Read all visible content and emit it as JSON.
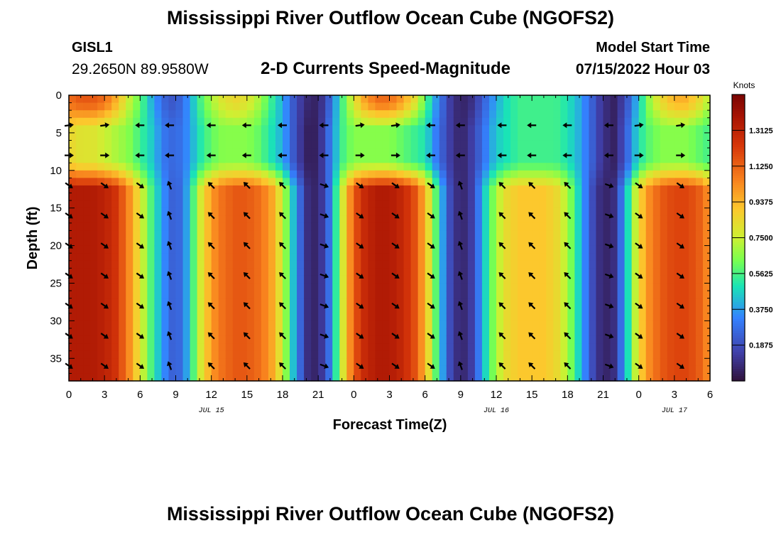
{
  "header": {
    "title": "Mississippi River Outflow Ocean Cube (NGOFS2)",
    "station_id": "GISL1",
    "station_coords": "29.2650N  89.9580W",
    "subtitle": "2-D Currents Speed-Magnitude",
    "model_start_label": "Model Start Time",
    "model_start_value": "07/15/2022 Hour 03"
  },
  "footer": {
    "title": "Mississippi River Outflow Ocean Cube (NGOFS2)"
  },
  "chart_data": {
    "type": "heatmap",
    "title": "2-D Currents Speed-Magnitude",
    "xlabel": "Forecast Time(Z)",
    "ylabel": "Depth (ft)",
    "xlim": [
      0,
      54
    ],
    "ylim": [
      38,
      0
    ],
    "x_ticks": [
      0,
      3,
      6,
      9,
      12,
      15,
      18,
      21,
      24,
      27,
      30,
      33,
      36,
      39,
      42,
      45,
      48,
      51,
      54
    ],
    "x_tick_labels": [
      "0",
      "3",
      "6",
      "9",
      "12",
      "15",
      "18",
      "21",
      "0",
      "3",
      "6",
      "9",
      "12",
      "15",
      "18",
      "21",
      "0",
      "3",
      "6"
    ],
    "y_ticks": [
      0,
      5,
      10,
      15,
      20,
      25,
      30,
      35
    ],
    "y_tick_labels": [
      "0",
      "5",
      "10",
      "15",
      "20",
      "25",
      "30",
      "35"
    ],
    "date_labels": [
      {
        "x": 12,
        "text": "JUL 15"
      },
      {
        "x": 36,
        "text": "JUL 16"
      },
      {
        "x": 51,
        "text": "JUL 17"
      }
    ],
    "colorbar": {
      "label": "Knots",
      "range": [
        0,
        1.5
      ],
      "ticks": [
        0.1875,
        0.375,
        0.5625,
        0.75,
        0.9375,
        1.125,
        1.3125
      ],
      "tick_labels": [
        "0.1875",
        "0.3750",
        "0.5625",
        "0.7500",
        "0.9375",
        "1.1250",
        "1.3125"
      ]
    },
    "speed_time_series": {
      "times": [
        0,
        1,
        2,
        3,
        4,
        5,
        6,
        7,
        8,
        9,
        10,
        11,
        12,
        13,
        14,
        15,
        16,
        17,
        18,
        19,
        20,
        21,
        22,
        23,
        24,
        25,
        26,
        27,
        28,
        29,
        30,
        31,
        32,
        33,
        34,
        35,
        36,
        37,
        38,
        39,
        40,
        41,
        42,
        43,
        44,
        45,
        46,
        47,
        48,
        49,
        50,
        51,
        52,
        53,
        54
      ],
      "upper_layer": [
        1.1,
        1.15,
        1.15,
        1.1,
        0.95,
        0.75,
        0.6,
        0.4,
        0.25,
        0.2,
        0.35,
        0.55,
        0.7,
        0.8,
        0.85,
        0.8,
        0.7,
        0.55,
        0.4,
        0.2,
        0.08,
        0.05,
        0.25,
        0.55,
        0.8,
        1.0,
        1.1,
        1.1,
        1.0,
        0.85,
        0.6,
        0.35,
        0.15,
        0.05,
        0.1,
        0.25,
        0.4,
        0.5,
        0.55,
        0.55,
        0.55,
        0.55,
        0.5,
        0.4,
        0.25,
        0.1,
        0.05,
        0.2,
        0.45,
        0.7,
        0.85,
        0.95,
        0.95,
        0.85,
        0.7
      ],
      "mid_layer": [
        0.85,
        0.8,
        0.8,
        0.75,
        0.7,
        0.65,
        0.55,
        0.45,
        0.3,
        0.25,
        0.35,
        0.5,
        0.6,
        0.65,
        0.65,
        0.65,
        0.6,
        0.5,
        0.4,
        0.2,
        0.05,
        0.05,
        0.3,
        0.55,
        0.65,
        0.65,
        0.65,
        0.65,
        0.6,
        0.55,
        0.5,
        0.3,
        0.15,
        0.05,
        0.15,
        0.3,
        0.45,
        0.5,
        0.55,
        0.55,
        0.55,
        0.55,
        0.5,
        0.4,
        0.25,
        0.1,
        0.05,
        0.25,
        0.5,
        0.6,
        0.65,
        0.65,
        0.65,
        0.6,
        0.55
      ],
      "lower_layer": [
        1.35,
        1.35,
        1.35,
        1.32,
        1.25,
        1.05,
        0.8,
        0.55,
        0.35,
        0.2,
        0.4,
        0.75,
        1.0,
        1.1,
        1.15,
        1.15,
        1.1,
        1.0,
        0.75,
        0.4,
        0.1,
        0.05,
        0.3,
        0.75,
        1.15,
        1.3,
        1.35,
        1.35,
        1.3,
        1.2,
        0.95,
        0.55,
        0.2,
        0.05,
        0.15,
        0.45,
        0.7,
        0.85,
        0.9,
        0.9,
        0.9,
        0.85,
        0.7,
        0.45,
        0.2,
        0.05,
        0.1,
        0.45,
        0.85,
        1.05,
        1.15,
        1.2,
        1.2,
        1.15,
        1.0
      ]
    },
    "vector_rows_depth": [
      4,
      8,
      12,
      16,
      20,
      24,
      28,
      32,
      36
    ],
    "vector_cols_time": [
      0,
      3,
      6,
      8.5,
      12,
      15,
      18,
      21.5,
      24.5,
      27.5,
      30.5,
      33,
      36.5,
      39,
      42,
      45.5,
      48,
      51.5
    ]
  }
}
